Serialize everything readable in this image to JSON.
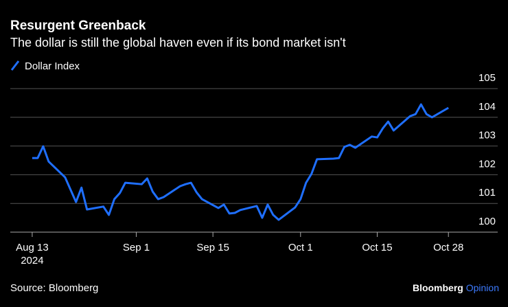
{
  "chart_data": {
    "type": "line",
    "title": "Resurgent Greenback",
    "subtitle": "The dollar is still the global haven even if its bond market isn't",
    "source": "Source: Bloomberg",
    "brand": "Bloomberg",
    "brand_suffix": "Opinion",
    "x": [
      "2024-08-13",
      "2024-08-14",
      "2024-08-15",
      "2024-08-16",
      "2024-08-19",
      "2024-08-20",
      "2024-08-21",
      "2024-08-22",
      "2024-08-23",
      "2024-08-26",
      "2024-08-27",
      "2024-08-28",
      "2024-08-29",
      "2024-08-30",
      "2024-09-02",
      "2024-09-03",
      "2024-09-04",
      "2024-09-05",
      "2024-09-06",
      "2024-09-09",
      "2024-09-10",
      "2024-09-11",
      "2024-09-12",
      "2024-09-13",
      "2024-09-16",
      "2024-09-17",
      "2024-09-18",
      "2024-09-19",
      "2024-09-20",
      "2024-09-23",
      "2024-09-24",
      "2024-09-25",
      "2024-09-26",
      "2024-09-27",
      "2024-09-30",
      "2024-10-01",
      "2024-10-02",
      "2024-10-03",
      "2024-10-04",
      "2024-10-07",
      "2024-10-08",
      "2024-10-09",
      "2024-10-10",
      "2024-10-11",
      "2024-10-14",
      "2024-10-15",
      "2024-10-16",
      "2024-10-17",
      "2024-10-18",
      "2024-10-21",
      "2024-10-22",
      "2024-10-23",
      "2024-10-24",
      "2024-10-25",
      "2024-10-28"
    ],
    "series": [
      {
        "name": "Dollar Index",
        "color": "#1f6fff",
        "values": [
          102.58,
          102.58,
          102.99,
          102.46,
          101.91,
          101.48,
          101.05,
          101.55,
          100.79,
          100.89,
          100.6,
          101.15,
          101.36,
          101.72,
          101.67,
          101.87,
          101.41,
          101.15,
          101.22,
          101.6,
          101.67,
          101.72,
          101.39,
          101.15,
          100.84,
          100.96,
          100.65,
          100.67,
          100.77,
          100.91,
          100.5,
          100.96,
          100.6,
          100.43,
          100.86,
          101.15,
          101.72,
          102.03,
          102.54,
          102.56,
          102.58,
          102.97,
          103.04,
          102.94,
          103.33,
          103.3,
          103.61,
          103.85,
          103.54,
          104.04,
          104.11,
          104.45,
          104.11,
          104.0,
          104.33
        ]
      }
    ],
    "xlim": [
      "2024-08-09",
      "2024-11-06"
    ],
    "xticks": [
      {
        "value": "2024-08-13",
        "label": "Aug 13",
        "sublabel": "2024"
      },
      {
        "value": "2024-09-01",
        "label": "Sep 1"
      },
      {
        "value": "2024-09-15",
        "label": "Sep 15"
      },
      {
        "value": "2024-10-01",
        "label": "Oct 1"
      },
      {
        "value": "2024-10-15",
        "label": "Oct 15"
      },
      {
        "value": "2024-10-28",
        "label": "Oct 28"
      }
    ],
    "ylim": [
      100,
      105
    ],
    "yticks": [
      100,
      101,
      102,
      103,
      104,
      105
    ],
    "grid": true
  }
}
